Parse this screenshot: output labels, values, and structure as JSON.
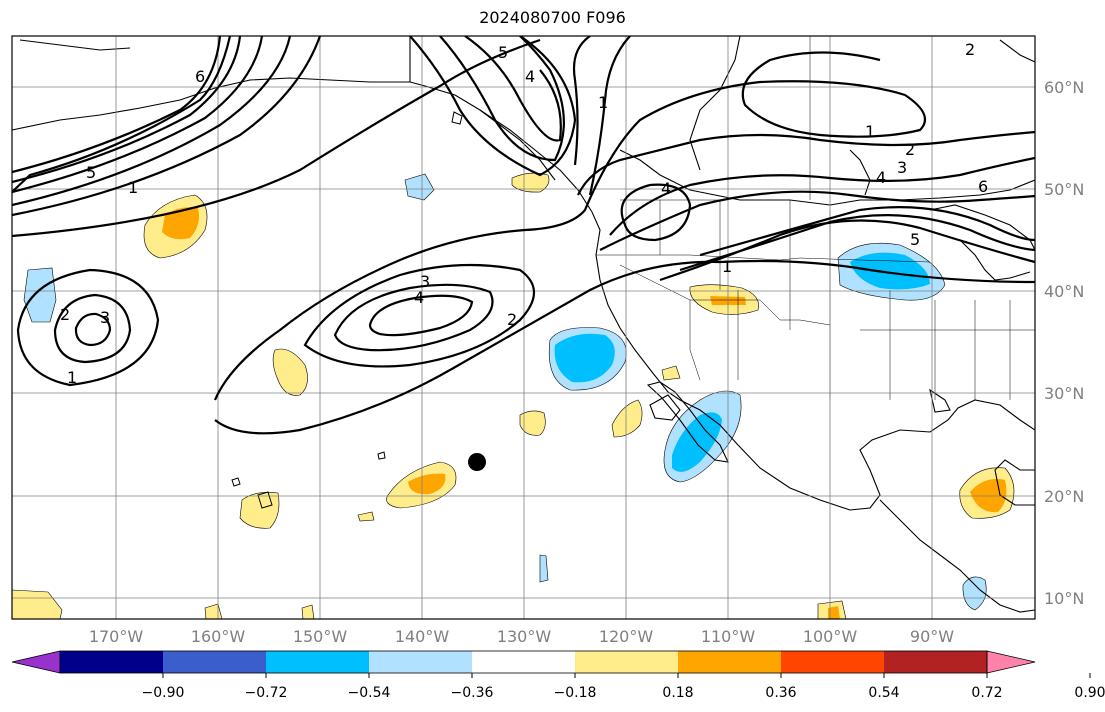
{
  "title": "2024080700 F096",
  "lon_labels": [
    "170°W",
    "160°W",
    "150°W",
    "140°W",
    "130°W",
    "120°W",
    "110°W",
    "100°W",
    "90°W"
  ],
  "lat_labels": [
    "60°N",
    "50°N",
    "40°N",
    "30°N",
    "20°N",
    "10°N"
  ],
  "colorbar": {
    "colors": [
      "#9932cc",
      "#00008b",
      "#3a5fcd",
      "#00bfff",
      "#b0e2ff",
      "#ffffff",
      "#ffec8b",
      "#ffa500",
      "#ff4500",
      "#b22222",
      "#ff82ab"
    ],
    "tick_labels": [
      "−0.90",
      "−0.72",
      "−0.54",
      "−0.36",
      "−0.18",
      "0.18",
      "0.36",
      "0.54",
      "0.72",
      "0.90"
    ]
  },
  "contour_labels": [
    "1",
    "2",
    "3",
    "4",
    "5",
    "6"
  ],
  "marker": "storm-position-marker"
}
